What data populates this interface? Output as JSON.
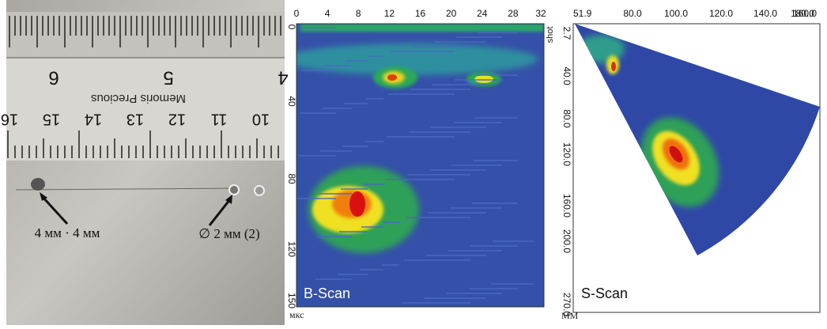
{
  "photo": {
    "ruler_inch_numbers": [
      "6",
      "5",
      "4"
    ],
    "brand": "Memoris Precious",
    "ruler_cm_numbers": [
      "16",
      "15",
      "14",
      "13",
      "12",
      "11",
      "10"
    ],
    "label_left": "4 мм · 4 мм",
    "label_right": "∅ 2 мм (2)"
  },
  "b_scan": {
    "title": "B-Scan",
    "x_ticks": [
      "0",
      "4",
      "8",
      "12",
      "16",
      "20",
      "24",
      "28",
      "32"
    ],
    "y_ticks": [
      "0",
      "40",
      "80",
      "120",
      "150"
    ],
    "x_unit": "shot",
    "y_unit": "мкс"
  },
  "s_scan": {
    "title": "S-Scan",
    "x_ticks": [
      "51.9",
      "80.0",
      "100.0",
      "120.0",
      "140.0",
      "160.0",
      "180.0"
    ],
    "y_ticks": [
      "2.7",
      "40.0",
      "80.0",
      "120.0",
      "160.0",
      "200.0",
      "270.0"
    ],
    "y_unit": "ММ"
  }
}
